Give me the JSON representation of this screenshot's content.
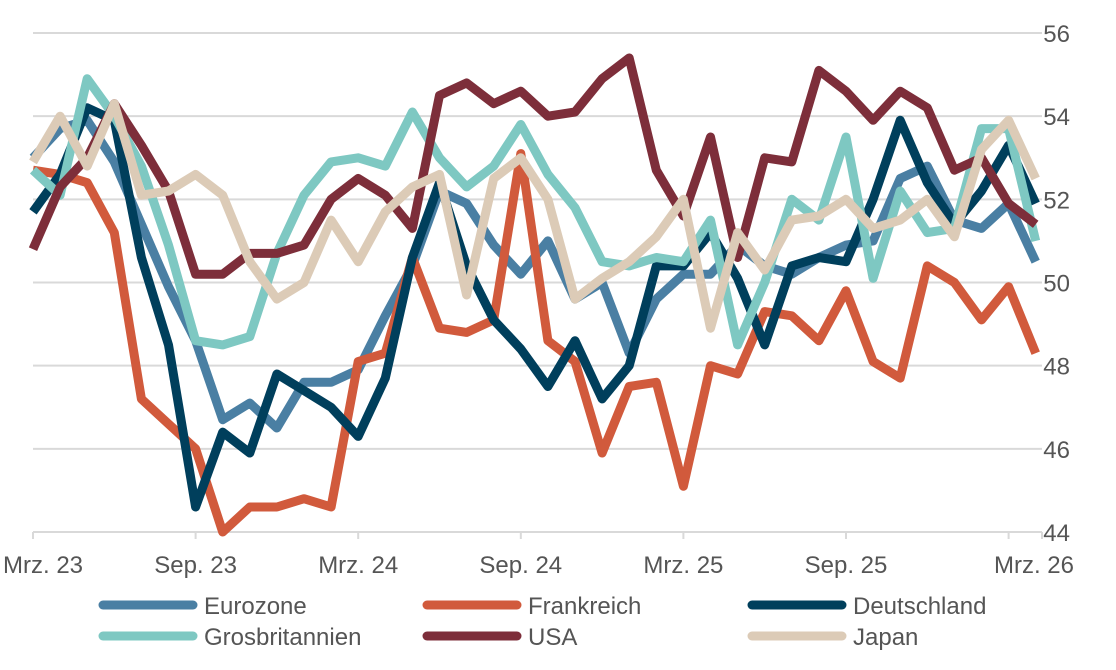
{
  "chart_data": {
    "type": "line",
    "title": "",
    "xlabel": "",
    "ylabel": "",
    "ylim": [
      44,
      56
    ],
    "y_ticks": [
      44,
      46,
      48,
      50,
      52,
      54,
      56
    ],
    "y_axis_side": "right",
    "grid": true,
    "legend_position": "bottom",
    "x": [
      "2023-03",
      "2023-04",
      "2023-05",
      "2023-06",
      "2023-07",
      "2023-08",
      "2023-09",
      "2023-10",
      "2023-11",
      "2023-12",
      "2024-01",
      "2024-02",
      "2024-03",
      "2024-04",
      "2024-05",
      "2024-06",
      "2024-07",
      "2024-08",
      "2024-09",
      "2024-10",
      "2024-11",
      "2024-12",
      "2025-01",
      "2025-02",
      "2025-03",
      "2025-04",
      "2025-05",
      "2025-06",
      "2025-07",
      "2025-08",
      "2025-09",
      "2025-10",
      "2025-11",
      "2025-12",
      "2026-01",
      "2026-02",
      "2026-03",
      "2026-04"
    ],
    "x_tick_labels": [
      {
        "x": "2023-03",
        "label": "Mrz. 23"
      },
      {
        "x": "2023-09",
        "label": "Sep. 23"
      },
      {
        "x": "2024-03",
        "label": "Mrz. 24"
      },
      {
        "x": "2024-09",
        "label": "Sep. 24"
      },
      {
        "x": "2025-03",
        "label": "Mrz. 25"
      },
      {
        "x": "2025-09",
        "label": "Sep. 25"
      },
      {
        "x": "2026-03",
        "label": "Mrz. 26"
      }
    ],
    "series": [
      {
        "name": "Eurozone",
        "color": "#4a7fa3",
        "values": [
          53.0,
          53.7,
          53.9,
          52.9,
          51.4,
          49.9,
          48.6,
          46.7,
          47.1,
          46.5,
          47.6,
          47.6,
          47.9,
          49.2,
          50.4,
          52.2,
          51.9,
          50.9,
          50.2,
          51.0,
          49.6,
          50.0,
          48.3,
          49.6,
          50.2,
          50.2,
          50.9,
          50.4,
          50.2,
          50.6,
          50.9,
          51.0,
          52.5,
          52.8,
          51.5,
          51.3,
          51.9,
          50.5
        ]
      },
      {
        "name": "Frankreich",
        "color": "#d15a3c",
        "values": [
          52.7,
          52.6,
          52.4,
          51.2,
          47.2,
          46.6,
          46.0,
          44.0,
          44.6,
          44.6,
          44.8,
          44.6,
          48.1,
          48.3,
          50.6,
          48.9,
          48.8,
          49.1,
          53.1,
          48.6,
          48.1,
          45.9,
          47.5,
          47.6,
          45.1,
          48.0,
          47.8,
          49.3,
          49.2,
          48.6,
          49.8,
          48.1,
          47.7,
          50.4,
          50.0,
          49.1,
          49.9,
          48.3
        ]
      },
      {
        "name": "Deutschland",
        "color": "#003f5c",
        "values": [
          51.7,
          52.6,
          54.2,
          53.9,
          50.6,
          48.5,
          44.6,
          46.4,
          45.9,
          47.8,
          47.4,
          47.0,
          46.3,
          47.7,
          50.6,
          52.4,
          50.4,
          49.1,
          48.4,
          47.5,
          48.6,
          47.2,
          48.0,
          50.4,
          50.4,
          51.2,
          50.1,
          48.5,
          50.4,
          50.6,
          50.5,
          52.0,
          53.9,
          52.4,
          51.4,
          52.2,
          53.3,
          51.9
        ]
      },
      {
        "name": "Grosbritannien",
        "color": "#7ec8c2",
        "values": [
          52.7,
          52.1,
          54.9,
          54.0,
          52.8,
          50.9,
          48.6,
          48.5,
          48.7,
          50.7,
          52.1,
          52.9,
          53.0,
          52.8,
          54.1,
          53.0,
          52.3,
          52.8,
          53.8,
          52.6,
          51.8,
          50.5,
          50.4,
          50.6,
          50.5,
          51.5,
          48.5,
          50.0,
          52.0,
          51.5,
          53.5,
          50.1,
          52.2,
          51.2,
          51.3,
          53.7,
          53.7,
          51.0
        ]
      },
      {
        "name": "USA",
        "color": "#7d2e3a",
        "values": [
          50.8,
          52.3,
          53.0,
          54.3,
          53.3,
          52.2,
          50.2,
          50.2,
          50.7,
          50.7,
          50.9,
          52.0,
          52.5,
          52.1,
          51.3,
          54.5,
          54.8,
          54.3,
          54.6,
          54.0,
          54.1,
          54.9,
          55.4,
          52.7,
          51.6,
          53.5,
          50.6,
          53.0,
          52.9,
          55.1,
          54.6,
          53.9,
          54.6,
          54.2,
          52.7,
          53.0,
          51.9,
          51.4
        ]
      },
      {
        "name": "Japan",
        "color": "#dccbb7",
        "values": [
          52.9,
          54.0,
          52.8,
          54.3,
          52.1,
          52.2,
          52.6,
          52.1,
          50.5,
          49.6,
          50.0,
          51.5,
          50.5,
          51.7,
          52.3,
          52.6,
          49.7,
          52.5,
          53.0,
          52.0,
          49.6,
          50.1,
          50.5,
          51.1,
          52.0,
          48.9,
          51.2,
          50.3,
          51.5,
          51.6,
          52.0,
          51.3,
          51.5,
          52.0,
          51.1,
          53.2,
          53.9,
          52.5
        ]
      }
    ]
  }
}
